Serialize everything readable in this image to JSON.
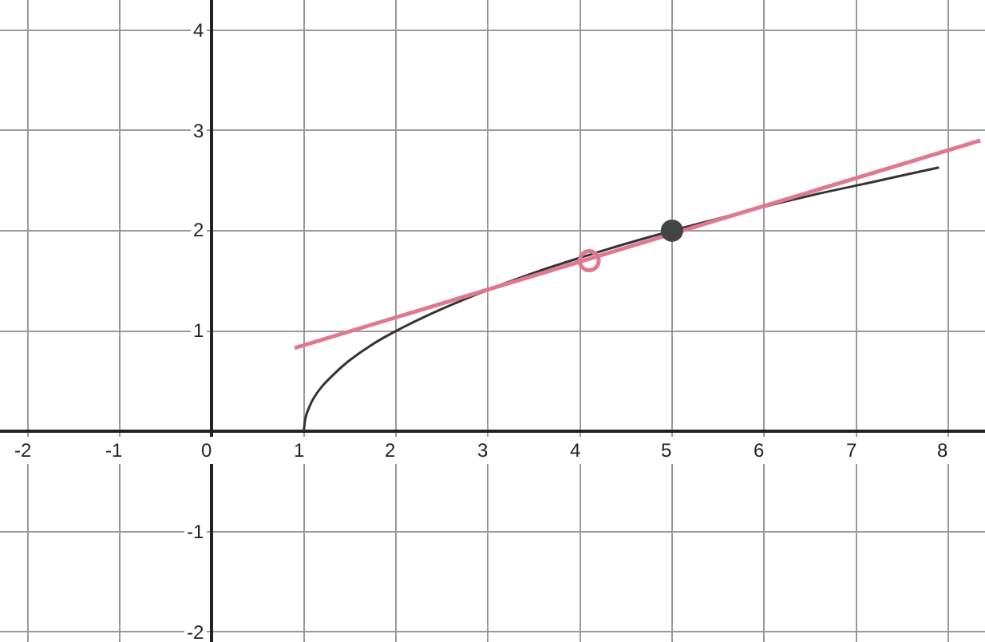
{
  "chart_data": {
    "type": "line",
    "xlim": [
      -2.3,
      8.4
    ],
    "ylim": [
      -2.1,
      4.3
    ],
    "xticks": [
      -2,
      -1,
      0,
      1,
      2,
      3,
      4,
      5,
      6,
      7,
      8
    ],
    "yticks": [
      -2,
      -1,
      1,
      2,
      3,
      4
    ],
    "grid": true,
    "marker": "none",
    "line_style": "solid",
    "series": [
      {
        "color": "#333333",
        "x": [
          1,
          1.02,
          1.05,
          1.1,
          1.2,
          1.35,
          1.5,
          1.75,
          2,
          2.5,
          3,
          3.5,
          4,
          4.5,
          5,
          5.5,
          6,
          6.5,
          7,
          7.5,
          7.9
        ],
        "values": [
          0,
          0.14,
          0.22,
          0.32,
          0.45,
          0.59,
          0.71,
          0.87,
          1,
          1.22,
          1.41,
          1.58,
          1.73,
          1.87,
          2,
          2.12,
          2.24,
          2.35,
          2.45,
          2.55,
          2.63
        ]
      },
      {
        "color": "#e07890",
        "x": [
          0.9,
          8.35
        ],
        "values": [
          0.83,
          2.9
        ]
      },
      {
        "type": "scatter",
        "color": "#444444",
        "marker": "circle",
        "x": [
          5
        ],
        "values": [
          2
        ]
      },
      {
        "type": "scatter",
        "color": "#e07890",
        "marker": "circle-open",
        "x": [
          4.1
        ],
        "values": [
          1.7
        ]
      }
    ]
  }
}
